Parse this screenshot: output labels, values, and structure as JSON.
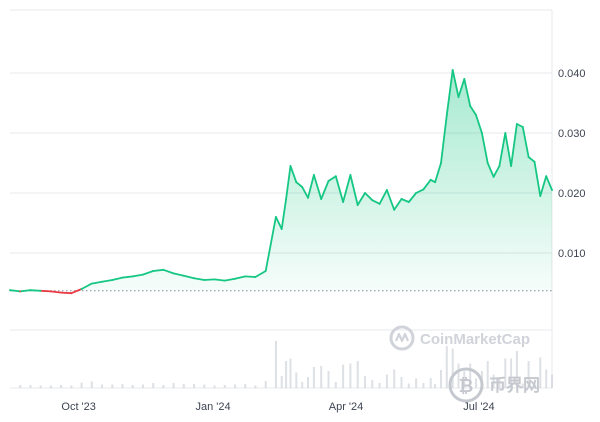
{
  "chart_data": {
    "type": "area",
    "x_unit": "date",
    "y_ticks": [
      0.01,
      0.02,
      0.03,
      0.04
    ],
    "y_tick_labels": [
      "0.010",
      "0.020",
      "0.030",
      "0.040"
    ],
    "x_tick_labels": [
      "Oct '23",
      "Jan '24",
      "Apr '24",
      "Jul '24"
    ],
    "x_ticks": [
      "2023-10-01",
      "2024-01-01",
      "2024-04-01",
      "2024-07-01"
    ],
    "x_range": [
      "2023-08-15",
      "2024-08-20"
    ],
    "ylim": [
      -0.0125,
      0.0505
    ],
    "baseline_value": 0.0037,
    "grid": true,
    "colors": {
      "up": "#16c784",
      "down": "#ea3943",
      "baseline": "#808a9d",
      "grid": "#e6e8ec"
    },
    "series": [
      {
        "x": [
          "2023-08-15",
          "2023-08-22",
          "2023-08-29",
          "2023-09-05",
          "2023-09-12",
          "2023-09-19",
          "2023-09-26",
          "2023-10-03",
          "2023-10-10",
          "2023-10-17",
          "2023-10-24",
          "2023-10-31",
          "2023-11-07",
          "2023-11-14",
          "2023-11-21",
          "2023-11-28",
          "2023-12-05",
          "2023-12-12",
          "2023-12-19",
          "2023-12-26",
          "2024-01-02",
          "2024-01-09",
          "2024-01-16",
          "2024-01-23",
          "2024-01-30",
          "2024-02-06",
          "2024-02-13",
          "2024-02-17",
          "2024-02-20",
          "2024-02-23",
          "2024-02-27",
          "2024-03-02",
          "2024-03-06",
          "2024-03-10",
          "2024-03-15",
          "2024-03-20",
          "2024-03-25",
          "2024-03-30",
          "2024-04-04",
          "2024-04-09",
          "2024-04-14",
          "2024-04-19",
          "2024-04-24",
          "2024-04-29",
          "2024-05-04",
          "2024-05-09",
          "2024-05-14",
          "2024-05-19",
          "2024-05-24",
          "2024-05-29",
          "2024-06-01",
          "2024-06-05",
          "2024-06-09",
          "2024-06-13",
          "2024-06-17",
          "2024-06-21",
          "2024-06-25",
          "2024-06-29",
          "2024-07-03",
          "2024-07-07",
          "2024-07-11",
          "2024-07-15",
          "2024-07-19",
          "2024-07-23",
          "2024-07-27",
          "2024-07-31",
          "2024-08-04",
          "2024-08-08",
          "2024-08-12",
          "2024-08-16",
          "2024-08-20"
        ],
        "y": [
          0.0038,
          0.0036,
          0.0038,
          0.0037,
          0.0036,
          0.0034,
          0.0033,
          0.004,
          0.0049,
          0.0052,
          0.0055,
          0.0059,
          0.0061,
          0.0064,
          0.007,
          0.0072,
          0.0066,
          0.0062,
          0.0058,
          0.0055,
          0.0056,
          0.0054,
          0.0057,
          0.0061,
          0.006,
          0.007,
          0.016,
          0.014,
          0.019,
          0.0245,
          0.0218,
          0.021,
          0.0192,
          0.023,
          0.019,
          0.022,
          0.0228,
          0.0185,
          0.023,
          0.018,
          0.02,
          0.0188,
          0.0182,
          0.0205,
          0.0172,
          0.019,
          0.0185,
          0.02,
          0.0206,
          0.0222,
          0.0218,
          0.025,
          0.033,
          0.0405,
          0.036,
          0.039,
          0.0345,
          0.033,
          0.03,
          0.025,
          0.0227,
          0.0245,
          0.03,
          0.0245,
          0.0315,
          0.031,
          0.026,
          0.0252,
          0.0195,
          0.0228,
          0.0205
        ]
      }
    ]
  },
  "watermarks": {
    "coinmarketcap": "CoinMarketCap",
    "bijie": "币界网"
  }
}
